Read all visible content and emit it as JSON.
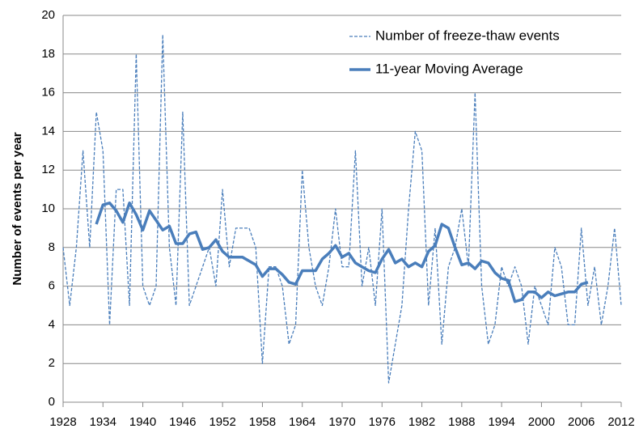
{
  "chart_data": {
    "type": "line",
    "ylabel": "Number of events per year",
    "x": [
      1928,
      1929,
      1930,
      1931,
      1932,
      1933,
      1934,
      1935,
      1936,
      1937,
      1938,
      1939,
      1940,
      1941,
      1942,
      1943,
      1944,
      1945,
      1946,
      1947,
      1948,
      1949,
      1950,
      1951,
      1952,
      1953,
      1954,
      1955,
      1956,
      1957,
      1958,
      1959,
      1960,
      1961,
      1962,
      1963,
      1964,
      1965,
      1966,
      1967,
      1968,
      1969,
      1970,
      1971,
      1972,
      1973,
      1974,
      1975,
      1976,
      1977,
      1978,
      1979,
      1980,
      1981,
      1982,
      1983,
      1984,
      1985,
      1986,
      1987,
      1988,
      1989,
      1990,
      1991,
      1992,
      1993,
      1994,
      1995,
      1996,
      1997,
      1998,
      1999,
      2000,
      2001,
      2002,
      2003,
      2004,
      2005,
      2006,
      2007,
      2008,
      2009,
      2010,
      2011,
      2012
    ],
    "series": [
      {
        "name": "Number of freeze-thaw events",
        "color": "#4a7ebb",
        "line_style": "dashed",
        "line_width": 1.3,
        "values": [
          8,
          5,
          8,
          13,
          8,
          15,
          13,
          4,
          11,
          11,
          5,
          18,
          6,
          5,
          6,
          19,
          8,
          5,
          15,
          5,
          6,
          7,
          8,
          6,
          11,
          7,
          9,
          9,
          9,
          8,
          2,
          7,
          7,
          6,
          3,
          4,
          12,
          8,
          6,
          5,
          7,
          10,
          7,
          7,
          13,
          6,
          8,
          5,
          10,
          1,
          3,
          5,
          10,
          14,
          13,
          5,
          9,
          3,
          7,
          8,
          10,
          7,
          16,
          6,
          3,
          4,
          7,
          6,
          7,
          6,
          3,
          6,
          5,
          4,
          8,
          7,
          4,
          4,
          9,
          5,
          7,
          4,
          6,
          9,
          5
        ]
      },
      {
        "name": "11-year Moving Average",
        "color": "#4a7ebb",
        "line_style": "solid",
        "line_width": 3.5,
        "values": [
          null,
          null,
          null,
          null,
          null,
          9.2,
          10.2,
          10.3,
          9.9,
          9.3,
          10.3,
          9.7,
          8.9,
          9.9,
          9.4,
          8.9,
          9.1,
          8.2,
          8.2,
          8.7,
          8.8,
          7.9,
          8.0,
          8.4,
          7.8,
          7.5,
          7.5,
          7.5,
          7.3,
          7.1,
          6.5,
          6.9,
          6.9,
          6.6,
          6.2,
          6.1,
          6.8,
          6.8,
          6.8,
          7.4,
          7.7,
          8.1,
          7.5,
          7.7,
          7.2,
          7.0,
          6.8,
          6.7,
          7.4,
          7.9,
          7.2,
          7.4,
          7.0,
          7.2,
          7.0,
          7.8,
          8.1,
          9.2,
          9.0,
          8.0,
          7.1,
          7.2,
          6.9,
          7.3,
          7.2,
          6.7,
          6.4,
          6.3,
          5.2,
          5.3,
          5.7,
          5.7,
          5.4,
          5.7,
          5.5,
          5.6,
          5.7,
          5.7,
          6.1,
          6.2,
          null,
          null,
          null,
          null,
          null
        ]
      }
    ],
    "xlim": [
      1928,
      2012
    ],
    "xticks": [
      1928,
      1934,
      1940,
      1946,
      1952,
      1958,
      1964,
      1970,
      1976,
      1982,
      1988,
      1994,
      2000,
      2006,
      2012
    ],
    "ylim": [
      0,
      20
    ],
    "yticks": [
      0,
      2,
      4,
      6,
      8,
      10,
      12,
      14,
      16,
      18,
      20
    ],
    "grid": true,
    "legend": "upper right"
  }
}
